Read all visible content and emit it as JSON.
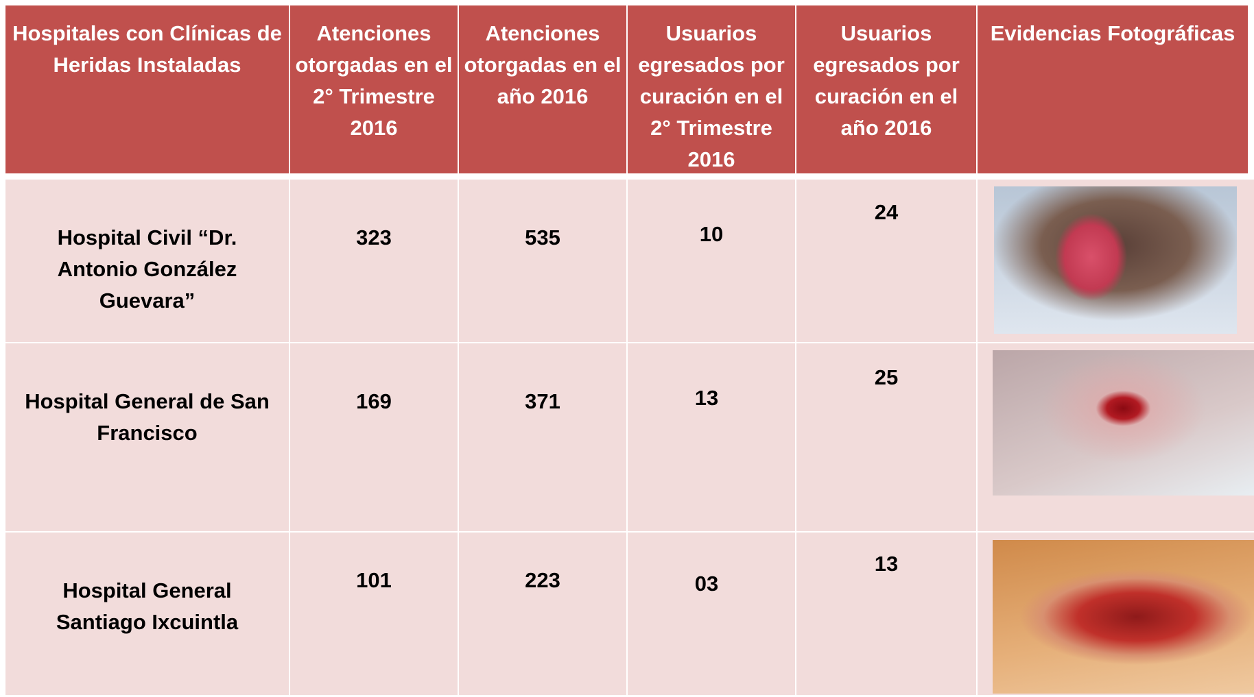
{
  "table": {
    "header": [
      "Hospitales con Clínicas de Heridas Instaladas",
      "Atenciones otorgadas en el 2° Trimestre 2016",
      "Atenciones otorgadas en el año 2016",
      "Usuarios egresados por curación en el 2° Trimestre 2016",
      "Usuarios egresados por curación en el año 2016",
      "Evidencias Fotográficas"
    ],
    "rows": [
      [
        "Hospital Civil “Dr. Antonio González Guevara”",
        "323",
        "535",
        "10",
        "24"
      ],
      [
        "Hospital General de San Francisco",
        "169",
        "371",
        "13",
        "25"
      ],
      [
        "Hospital General Santiago Ixcuintla",
        "101",
        "223",
        "03",
        "13"
      ]
    ]
  }
}
